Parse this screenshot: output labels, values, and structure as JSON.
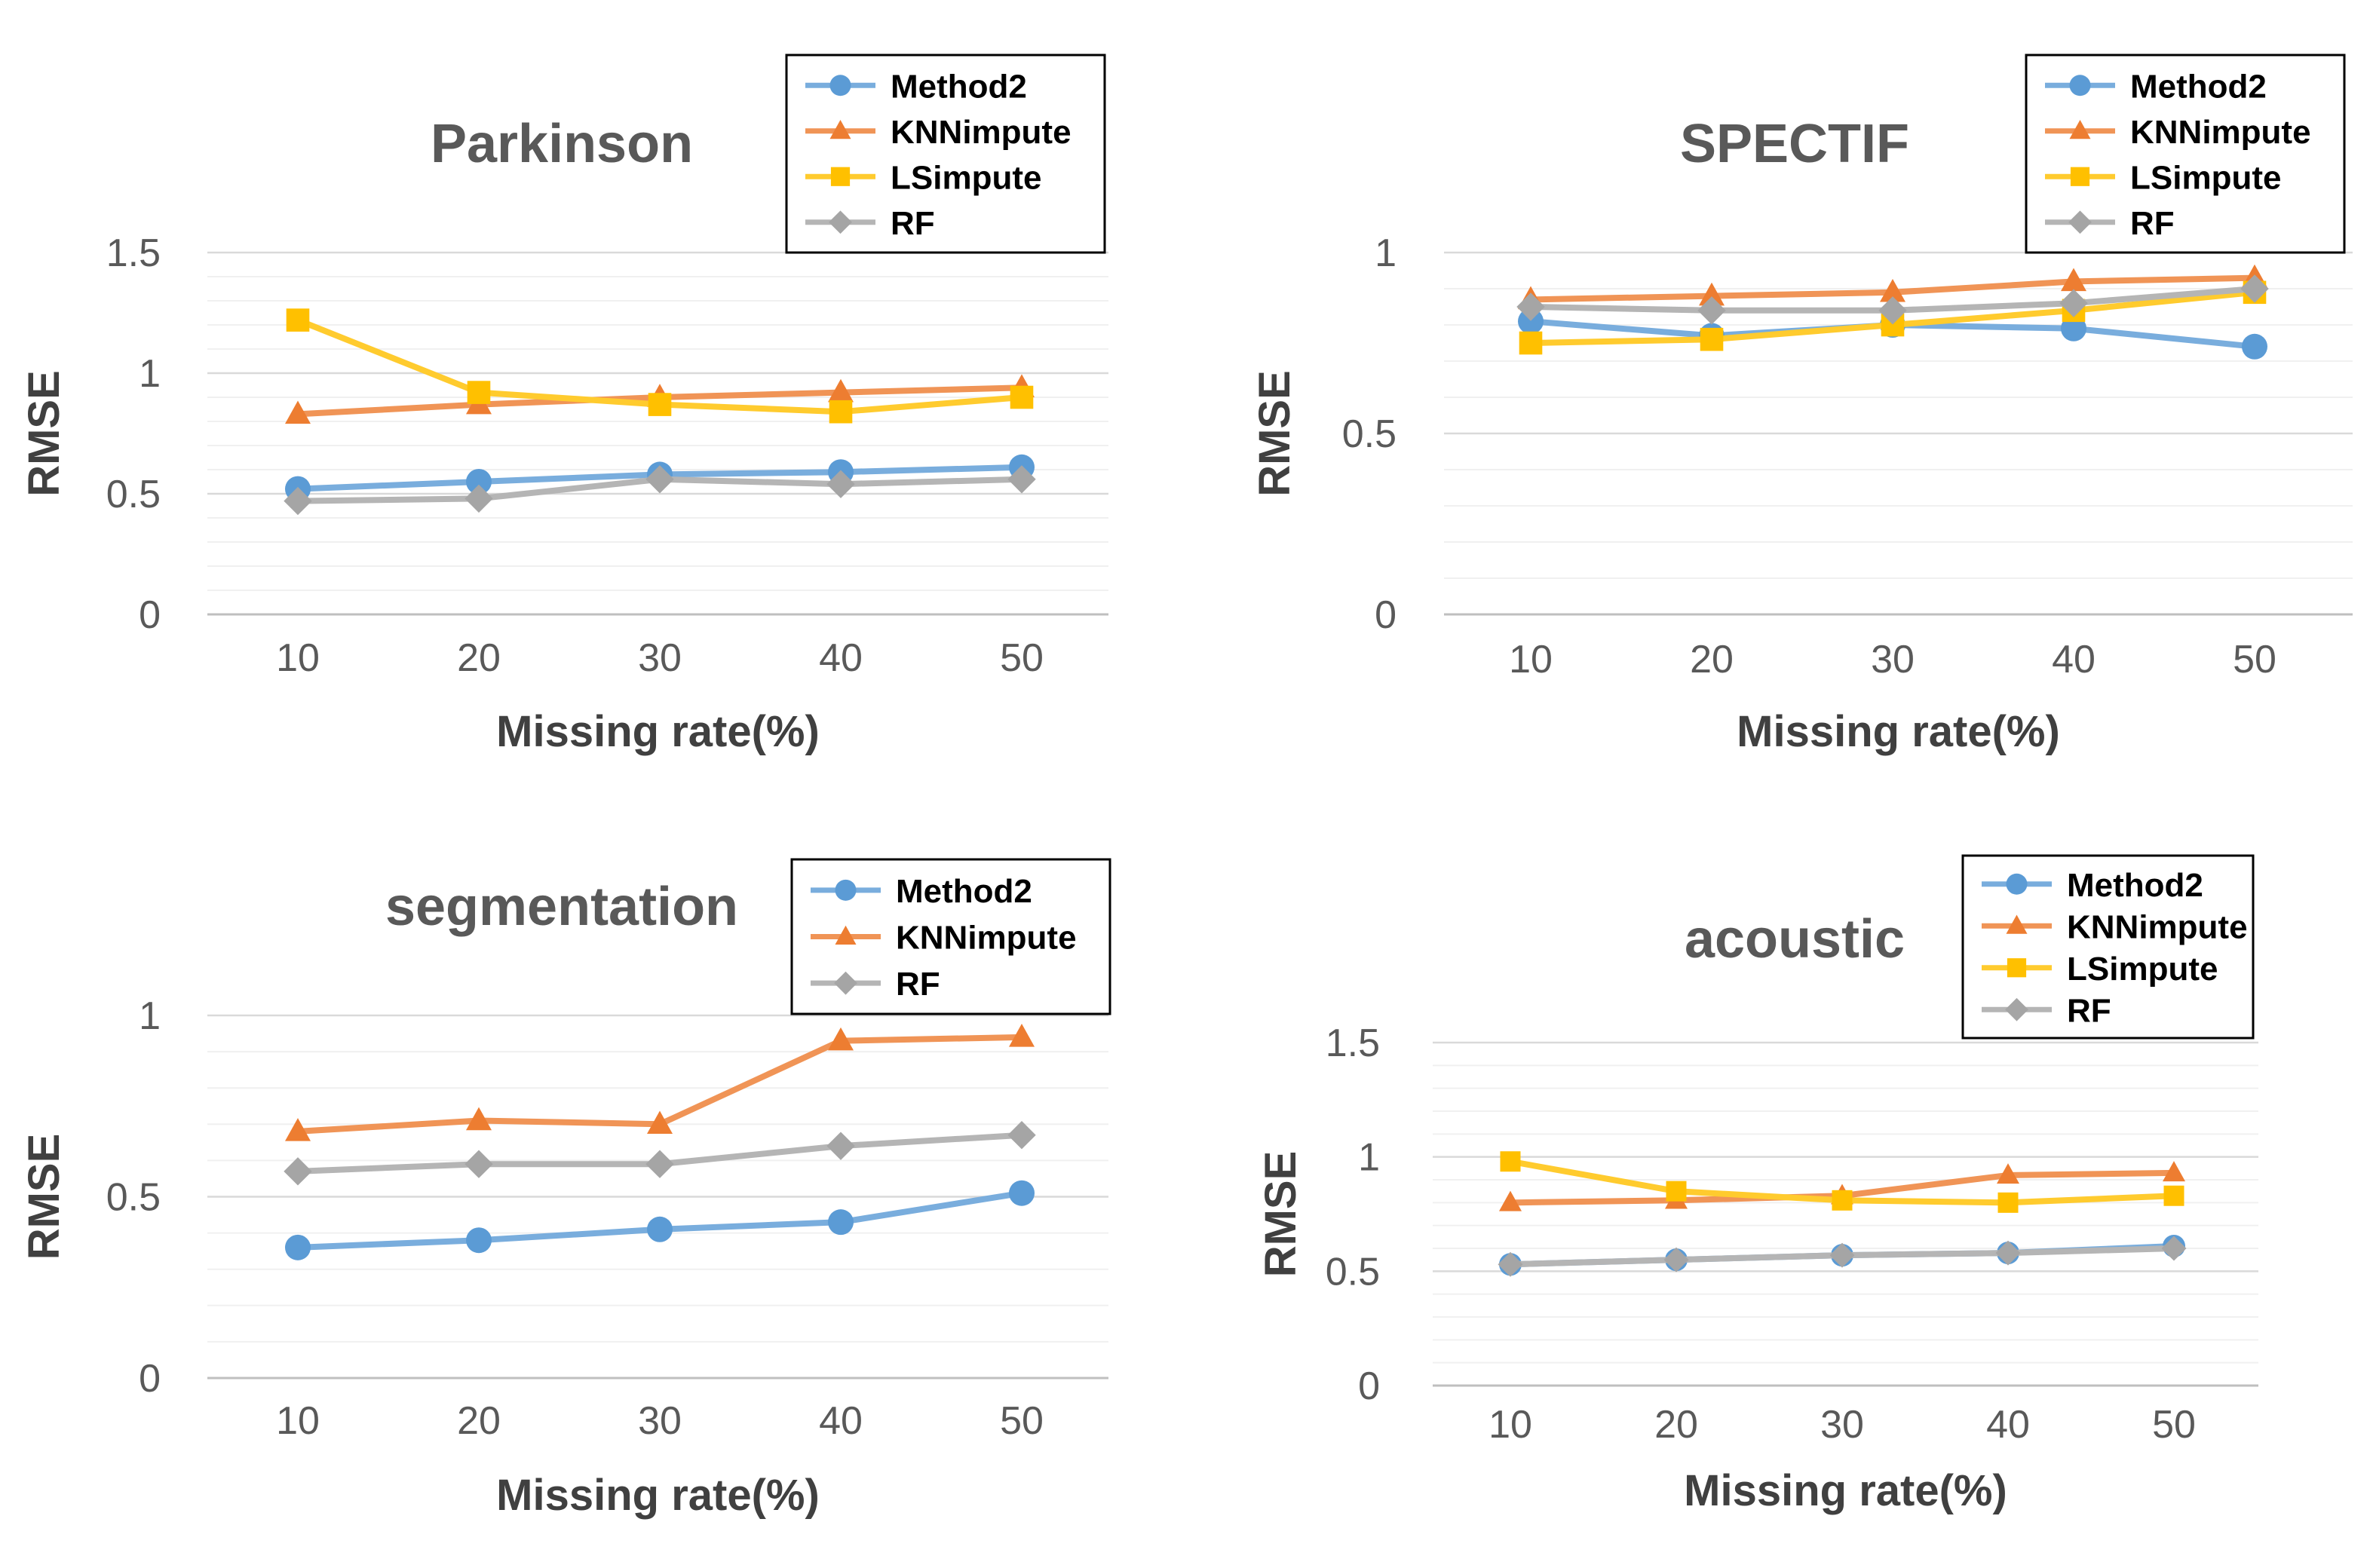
{
  "colors": {
    "Method2": "#5B9BD5",
    "KNNimpute": "#ED7D31",
    "LSimpute": "#FFC000",
    "RF": "#A5A5A5"
  },
  "chart_data": [
    {
      "type": "line",
      "title": "Parkinson",
      "xlabel": "Missing rate(%)",
      "ylabel": "RMSE",
      "x": [
        10,
        20,
        30,
        40,
        50
      ],
      "ylim": [
        0,
        1.5
      ],
      "yticks": [
        "0",
        "0.5",
        "1",
        "1.5"
      ],
      "legend": "top-right",
      "series": [
        {
          "name": "Method2",
          "marker": "circle",
          "values": [
            0.52,
            0.55,
            0.58,
            0.59,
            0.61
          ]
        },
        {
          "name": "KNNimpute",
          "marker": "triangle",
          "values": [
            0.83,
            0.87,
            0.9,
            0.92,
            0.94
          ]
        },
        {
          "name": "LSimpute",
          "marker": "square",
          "values": [
            1.22,
            0.92,
            0.87,
            0.84,
            0.9
          ]
        },
        {
          "name": "RF",
          "marker": "diamond",
          "values": [
            0.47,
            0.48,
            0.56,
            0.54,
            0.56
          ]
        }
      ]
    },
    {
      "type": "line",
      "title": "SPECTIF",
      "xlabel": "Missing rate(%)",
      "ylabel": "RMSE",
      "x": [
        10,
        20,
        30,
        40,
        50
      ],
      "ylim": [
        0,
        1
      ],
      "yticks": [
        "0",
        "0.5",
        "1"
      ],
      "legend": "top-right",
      "series": [
        {
          "name": "Method2",
          "marker": "circle",
          "values": [
            0.81,
            0.77,
            0.8,
            0.79,
            0.74
          ]
        },
        {
          "name": "KNNimpute",
          "marker": "triangle",
          "values": [
            0.87,
            0.88,
            0.89,
            0.92,
            0.93
          ]
        },
        {
          "name": "LSimpute",
          "marker": "square",
          "values": [
            0.75,
            0.76,
            0.8,
            0.84,
            0.89
          ]
        },
        {
          "name": "RF",
          "marker": "diamond",
          "values": [
            0.85,
            0.84,
            0.84,
            0.86,
            0.9
          ]
        }
      ]
    },
    {
      "type": "line",
      "title": "segmentation",
      "xlabel": "Missing rate(%)",
      "ylabel": "RMSE",
      "x": [
        10,
        20,
        30,
        40,
        50
      ],
      "ylim": [
        0,
        1
      ],
      "yticks": [
        "0",
        "0.5",
        "1"
      ],
      "legend": "top-right",
      "series": [
        {
          "name": "Method2",
          "marker": "circle",
          "values": [
            0.36,
            0.38,
            0.41,
            0.43,
            0.51
          ]
        },
        {
          "name": "KNNimpute",
          "marker": "triangle",
          "values": [
            0.68,
            0.71,
            0.7,
            0.93,
            0.94
          ]
        },
        {
          "name": "RF",
          "marker": "diamond",
          "values": [
            0.57,
            0.59,
            0.59,
            0.64,
            0.67
          ]
        }
      ]
    },
    {
      "type": "line",
      "title": "acoustic",
      "xlabel": "Missing rate(%)",
      "ylabel": "RMSE",
      "x": [
        10,
        20,
        30,
        40,
        50
      ],
      "ylim": [
        0,
        1.5
      ],
      "yticks": [
        "0",
        "0.5",
        "1",
        "1.5"
      ],
      "legend": "top-right",
      "series": [
        {
          "name": "Method2",
          "marker": "circle",
          "values": [
            0.53,
            0.55,
            0.57,
            0.58,
            0.61
          ]
        },
        {
          "name": "KNNimpute",
          "marker": "triangle",
          "values": [
            0.8,
            0.81,
            0.83,
            0.92,
            0.93
          ]
        },
        {
          "name": "LSimpute",
          "marker": "square",
          "values": [
            0.98,
            0.85,
            0.81,
            0.8,
            0.83
          ]
        },
        {
          "name": "RF",
          "marker": "diamond",
          "values": [
            0.53,
            0.55,
            0.57,
            0.58,
            0.6
          ]
        }
      ]
    }
  ]
}
